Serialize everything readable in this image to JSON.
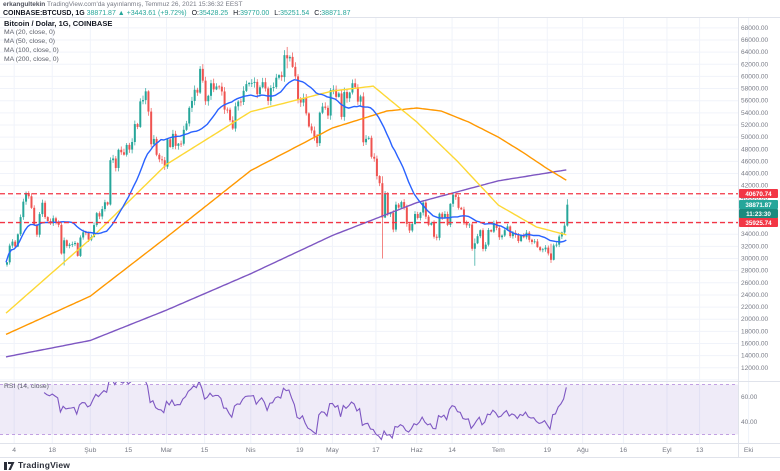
{
  "header": {
    "byline": {
      "author": "erkangultekin",
      "rest": " TradingView.com'da yayınlanmış, Temmuz 26, 2021 15:36:32 EEST"
    },
    "quote": {
      "symbol": "COINBASE:BTCUSD, 1G",
      "last": "38871.87",
      "arrow": "▲",
      "change": "+3443.61 (+9.72%)",
      "ohlc": [
        {
          "label": "O:",
          "value": "35428.25"
        },
        {
          "label": "H:",
          "value": "39770.00"
        },
        {
          "label": "L:",
          "value": "35251.54"
        },
        {
          "label": "C:",
          "value": "38871.87"
        }
      ]
    }
  },
  "legend": {
    "title": "Bitcoin / Dolar, 1G, COINBASE",
    "indicators": [
      "MA (20, close, 0)",
      "MA (50, close, 0)",
      "MA (100, close, 0)",
      "MA (200, close, 0)"
    ]
  },
  "rsi_pane": {
    "label": "RSI (14, close)",
    "axis_labels": [
      {
        "text": "60.00",
        "value": 60
      },
      {
        "text": "40.00",
        "value": 40
      }
    ],
    "band": [
      30,
      70
    ],
    "color": "#7e57c2",
    "band_fill": "rgba(126,87,194,0.12)",
    "band_border": "rgba(149,91,205,0.55)"
  },
  "price_axis": {
    "min": 10000,
    "max": 68000,
    "step": 2000,
    "badges": {
      "upper_level": {
        "text": "40670.74",
        "value": 40670.74,
        "color": "#f23645"
      },
      "last_price": {
        "text": "38871.87",
        "value": 38871.87,
        "color": "#26a69a"
      },
      "countdown": {
        "text": "11:23:30",
        "color": "#1c8a7e"
      },
      "hidden_orange": {
        "color": "#ff9800"
      },
      "lower_level": {
        "text": "35925.74",
        "value": 35925.74,
        "color": "#f23645"
      }
    }
  },
  "time_axis": [
    {
      "label": "4",
      "day": 3
    },
    {
      "label": "18",
      "day": 17
    },
    {
      "label": "Şub",
      "day": 31
    },
    {
      "label": "15",
      "day": 45
    },
    {
      "label": "Mar",
      "day": 59
    },
    {
      "label": "15",
      "day": 73
    },
    {
      "label": "Nis",
      "day": 90
    },
    {
      "label": "19",
      "day": 108
    },
    {
      "label": "May",
      "day": 120
    },
    {
      "label": "17",
      "day": 136
    },
    {
      "label": "Haz",
      "day": 151
    },
    {
      "label": "14",
      "day": 164
    },
    {
      "label": "Tem",
      "day": 181
    },
    {
      "label": "19",
      "day": 199
    },
    {
      "label": "Ağu",
      "day": 212
    },
    {
      "label": "16",
      "day": 227
    },
    {
      "label": "Eyl",
      "day": 243
    },
    {
      "label": "13",
      "day": 255
    },
    {
      "label": "Eki",
      "day": 273
    }
  ],
  "footer": {
    "brand": "TradingView"
  },
  "colors": {
    "up": "#26a69a",
    "down": "#ef5350",
    "grid": "#f0f3fa",
    "axis_text": "#787b86",
    "level": "#f23645",
    "ma20": "#2962ff",
    "ma50": "#fdd835",
    "ma100": "#ff9800",
    "ma200": "#7e57c2"
  },
  "chart_data": {
    "type": "candlestick",
    "title": "Bitcoin / Dolar, 1G, COINBASE",
    "x_range": [
      "2021-01-01",
      "2021-10-01"
    ],
    "price_range_visible": [
      10000,
      68000
    ],
    "grid_step": 2000,
    "first_open": 28994,
    "closes": [
      29374,
      32127,
      32782,
      31971,
      33992,
      36824,
      39371,
      40797,
      40254,
      38356,
      35566,
      33922,
      37316,
      39187,
      36825,
      36178,
      35791,
      36630,
      36069,
      35547,
      30825,
      33005,
      32067,
      32289,
      32366,
      32569,
      30432,
      33466,
      34316,
      34269,
      33114,
      33537,
      35510,
      37472,
      36926,
      38144,
      39266,
      38903,
      46196,
      46481,
      44918,
      47909,
      47504,
      47105,
      48717,
      47945,
      49199,
      52149,
      51679,
      55888,
      56099,
      57539,
      54207,
      48824,
      49705,
      47093,
      46339,
      46188,
      45137,
      49631,
      48378,
      50538,
      48561,
      48927,
      48912,
      51206,
      52246,
      54824,
      55963,
      57805,
      57332,
      61243,
      59302,
      55907,
      56804,
      58870,
      57858,
      58346,
      58313,
      57523,
      54529,
      54511,
      52774,
      51415,
      55074,
      55863,
      55783,
      57627,
      58730,
      58918,
      58926,
      59095,
      57076,
      58206,
      59054,
      58020,
      55958,
      58092,
      58245,
      59793,
      60204,
      59893,
      63503,
      62980,
      63216,
      61572,
      60005,
      56216,
      55696,
      56473,
      53906,
      51762,
      51093,
      50050,
      49004,
      54021,
      55033,
      54824,
      53555,
      57750,
      57828,
      56631,
      57200,
      53333,
      57424,
      56396,
      57352,
      58877,
      58232,
      55847,
      56704,
      49150,
      49716,
      49880,
      46760,
      46456,
      43580,
      42408,
      36753,
      40596,
      37304,
      37536,
      34770,
      38878,
      38392,
      39294,
      38436,
      35697,
      34616,
      35678,
      37332,
      36684,
      37575,
      39208,
      36894,
      35551,
      35862,
      33589,
      33416,
      37389,
      36703,
      37338,
      35546,
      39020,
      40516,
      40144,
      38349,
      38092,
      35819,
      35483,
      35600,
      31608,
      32509,
      33678,
      34663,
      31584,
      32283,
      34700,
      34434,
      35847,
      35041,
      33504,
      33786,
      34669,
      35286,
      33690,
      34220,
      33862,
      32875,
      33815,
      33502,
      34258,
      33086,
      32729,
      32820,
      31867,
      31382,
      31516,
      31796,
      30839,
      29790,
      32144,
      32287,
      33634,
      34290,
      35419,
      38872
    ],
    "last_candle": {
      "o": 35428.25,
      "h": 39770.0,
      "l": 35251.54,
      "c": 38871.87
    },
    "wick_overrides": {
      "21": [
        33456,
        28850
      ],
      "103": [
        64854,
        61332
      ],
      "138": [
        43546,
        30000
      ],
      "172": [
        33302,
        28805
      ],
      "200": [
        32435,
        29278
      ]
    },
    "levels": [
      40670.74,
      35925.74
    ],
    "ma_series": [
      {
        "name": "MA (20, close, 0)",
        "color": "#2962ff",
        "computed_sma": 20
      },
      {
        "name": "MA (50, close, 0)",
        "color": "#fdd835",
        "anchors": [
          [
            0,
            21000
          ],
          [
            31,
            33200
          ],
          [
            59,
            45500
          ],
          [
            90,
            54200
          ],
          [
            120,
            57600
          ],
          [
            135,
            58400
          ],
          [
            151,
            52500
          ],
          [
            166,
            46000
          ],
          [
            181,
            38800
          ],
          [
            195,
            35200
          ],
          [
            206,
            33900
          ]
        ]
      },
      {
        "name": "MA (100, close, 0)",
        "color": "#ff9800",
        "anchors": [
          [
            0,
            17500
          ],
          [
            31,
            23800
          ],
          [
            59,
            33500
          ],
          [
            90,
            44500
          ],
          [
            120,
            51500
          ],
          [
            140,
            54300
          ],
          [
            151,
            54800
          ],
          [
            160,
            54300
          ],
          [
            170,
            52500
          ],
          [
            181,
            50000
          ],
          [
            190,
            47500
          ],
          [
            199,
            44800
          ],
          [
            206,
            42900
          ]
        ]
      },
      {
        "name": "MA (200, close, 0)",
        "color": "#7e57c2",
        "anchors": [
          [
            0,
            13800
          ],
          [
            31,
            16500
          ],
          [
            59,
            21500
          ],
          [
            90,
            27500
          ],
          [
            120,
            33800
          ],
          [
            151,
            39200
          ],
          [
            181,
            42800
          ],
          [
            206,
            44600
          ]
        ]
      }
    ],
    "rsi": {
      "period": 14,
      "band": [
        30,
        70
      ]
    }
  }
}
